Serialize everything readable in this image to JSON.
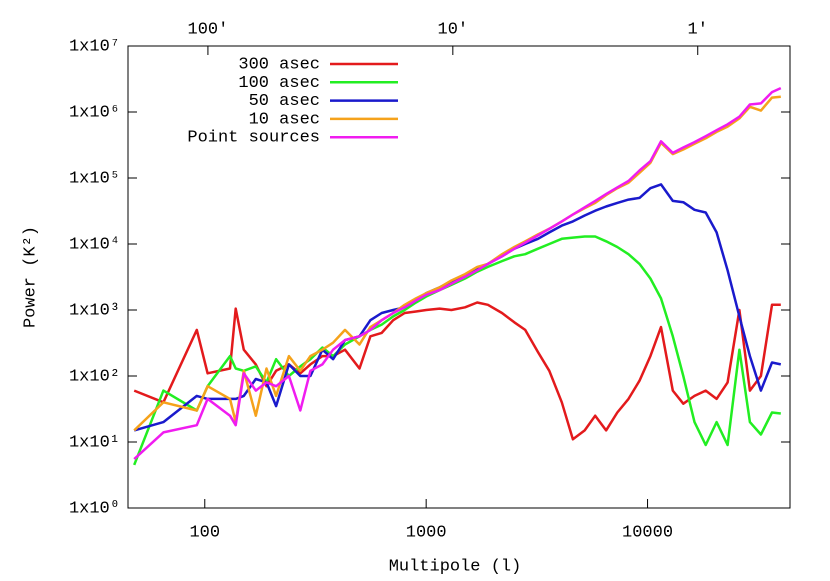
{
  "chart_data": {
    "type": "line",
    "xlabel": "Multipole (l)",
    "ylabel": "Power (K²)",
    "xlog": true,
    "ylog": true,
    "xlim": [
      45,
      44000
    ],
    "ylim": [
      1,
      10000000
    ],
    "xticks": [
      100,
      1000,
      10000
    ],
    "yticks": [
      {
        "value": 1,
        "label": "1x10⁰"
      },
      {
        "value": 10,
        "label": "1x10¹"
      },
      {
        "value": 100,
        "label": "1x10²"
      },
      {
        "value": 1000,
        "label": "1x10³"
      },
      {
        "value": 10000,
        "label": "1x10⁴"
      },
      {
        "value": 100000,
        "label": "1x10⁵"
      },
      {
        "value": 1000000,
        "label": "1x10⁶"
      },
      {
        "value": 10000000,
        "label": "1x10⁷"
      }
    ],
    "x2lim": [
      212,
      0.42
    ],
    "x2ticks": [
      {
        "value": 100,
        "label": "100′"
      },
      {
        "value": 10,
        "label": "10′"
      },
      {
        "value": 1,
        "label": "1′"
      }
    ],
    "legend": "top-left",
    "x": [
      48,
      65,
      92,
      103,
      130,
      138,
      150,
      170,
      190,
      210,
      240,
      270,
      300,
      340,
      380,
      430,
      500,
      560,
      630,
      710,
      800,
      900,
      1000,
      1150,
      1300,
      1500,
      1700,
      1900,
      2200,
      2500,
      2800,
      3200,
      3600,
      4100,
      4600,
      5200,
      5800,
      6500,
      7300,
      8200,
      9200,
      10300,
      11500,
      13000,
      14500,
      16300,
      18300,
      20500,
      23000,
      26000,
      29000,
      32500,
      36500,
      40000
    ],
    "series": [
      {
        "name": "300 asec",
        "color": "#e31a1c",
        "values": [
          60,
          40,
          500,
          110,
          130,
          1050,
          250,
          150,
          70,
          120,
          150,
          110,
          150,
          200,
          200,
          250,
          130,
          400,
          450,
          700,
          900,
          950,
          1000,
          1050,
          1000,
          1100,
          1300,
          1200,
          900,
          650,
          500,
          230,
          120,
          40,
          11,
          15,
          25,
          15,
          28,
          45,
          85,
          200,
          550,
          60,
          38,
          50,
          60,
          45,
          80,
          1000,
          60,
          100,
          1200,
          1200
        ]
      },
      {
        "name": "100 asec",
        "color": "#22ee22",
        "values": [
          4.5,
          60,
          30,
          70,
          200,
          130,
          120,
          140,
          80,
          180,
          100,
          140,
          180,
          270,
          200,
          300,
          400,
          500,
          600,
          800,
          1000,
          1300,
          1600,
          2000,
          2400,
          3000,
          3800,
          4500,
          5500,
          6500,
          7000,
          8500,
          10000,
          12000,
          12500,
          13000,
          13000,
          11000,
          9000,
          7000,
          5000,
          3000,
          1500,
          400,
          100,
          20,
          9,
          20,
          9,
          250,
          20,
          13,
          28,
          27
        ]
      },
      {
        "name": "50 asec",
        "color": "#1a1acc",
        "values": [
          15,
          20,
          50,
          45,
          45,
          45,
          50,
          90,
          80,
          35,
          150,
          100,
          100,
          250,
          180,
          350,
          400,
          700,
          900,
          1000,
          1100,
          1400,
          1800,
          2200,
          2700,
          3300,
          4300,
          5000,
          6500,
          8500,
          10000,
          12000,
          15000,
          19000,
          22000,
          27000,
          32000,
          37000,
          42000,
          47000,
          50000,
          70000,
          80000,
          45000,
          43000,
          33000,
          30000,
          15000,
          4000,
          800,
          200,
          60,
          160,
          150
        ]
      },
      {
        "name": "10 asec",
        "color": "#f5a21b",
        "values": [
          15,
          40,
          30,
          70,
          45,
          20,
          120,
          25,
          130,
          50,
          200,
          120,
          200,
          250,
          320,
          500,
          300,
          550,
          700,
          900,
          1200,
          1500,
          1800,
          2200,
          2800,
          3500,
          4500,
          5000,
          7000,
          9000,
          11000,
          14000,
          17000,
          22000,
          28000,
          35000,
          42000,
          55000,
          70000,
          85000,
          120000,
          170000,
          340000,
          230000,
          270000,
          330000,
          400000,
          500000,
          600000,
          800000,
          1200000,
          1050000,
          1650000,
          1700000
        ]
      },
      {
        "name": "Point sources",
        "color": "#f01cf0",
        "values": [
          5.5,
          14,
          18,
          45,
          25,
          18,
          110,
          60,
          80,
          70,
          100,
          30,
          120,
          150,
          250,
          350,
          400,
          500,
          700,
          900,
          1100,
          1400,
          1700,
          2000,
          2500,
          3200,
          4000,
          5000,
          6500,
          8500,
          10500,
          13500,
          17000,
          22000,
          28000,
          36000,
          45000,
          57000,
          72000,
          90000,
          130000,
          180000,
          360000,
          240000,
          290000,
          350000,
          430000,
          530000,
          650000,
          850000,
          1300000,
          1350000,
          2000000,
          2300000
        ]
      }
    ]
  }
}
